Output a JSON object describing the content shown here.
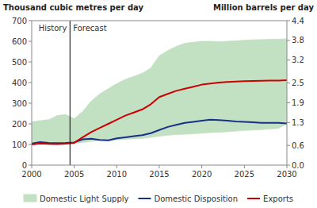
{
  "chart_data": {
    "type": "area",
    "y_label": "Thousand cubic metres per day",
    "y2_label": "Million barrels per day",
    "x": [
      2000,
      2001,
      2002,
      2003,
      2004,
      2005,
      2006,
      2007,
      2008,
      2009,
      2010,
      2011,
      2012,
      2013,
      2014,
      2015,
      2016,
      2017,
      2018,
      2019,
      2020,
      2021,
      2022,
      2023,
      2024,
      2025,
      2026,
      2027,
      2028,
      2029,
      2030
    ],
    "series": [
      {
        "name": "Domestic Light Supply",
        "type": "area",
        "color": "#c2e0c2",
        "values": [
          210,
          215,
          220,
          240,
          245,
          225,
          260,
          310,
          345,
          370,
          395,
          415,
          430,
          445,
          470,
          530,
          555,
          575,
          590,
          595,
          600,
          600,
          598,
          600,
          602,
          605,
          607,
          608,
          610,
          610,
          612
        ],
        "bottom": [
          100,
          105,
          100,
          100,
          105,
          105,
          110,
          115,
          120,
          118,
          122,
          125,
          128,
          130,
          135,
          140,
          145,
          148,
          150,
          152,
          155,
          158,
          160,
          162,
          165,
          168,
          170,
          172,
          175,
          178,
          200
        ]
      },
      {
        "name": "Domestic Disposition",
        "type": "line",
        "color": "#1a2f8a",
        "values": [
          105,
          112,
          108,
          107,
          108,
          110,
          125,
          128,
          122,
          120,
          130,
          135,
          140,
          145,
          155,
          170,
          185,
          195,
          205,
          210,
          215,
          220,
          218,
          215,
          212,
          210,
          208,
          205,
          205,
          205,
          202
        ]
      },
      {
        "name": "Exports",
        "type": "line",
        "color": "#cc0000",
        "values": [
          100,
          105,
          103,
          102,
          104,
          108,
          135,
          160,
          180,
          200,
          220,
          240,
          255,
          270,
          295,
          330,
          345,
          360,
          370,
          380,
          390,
          395,
          400,
          403,
          405,
          407,
          408,
          409,
          410,
          410,
          412
        ]
      }
    ],
    "xlim": [
      2000,
      2030
    ],
    "xticks": [
      2000,
      2005,
      2010,
      2015,
      2020,
      2025,
      2030
    ],
    "ylim": [
      0,
      700
    ],
    "yticks": [
      0,
      100,
      200,
      300,
      400,
      500,
      600,
      700
    ],
    "y2lim": [
      0.0,
      4.4
    ],
    "y2ticks": [
      {
        "value": 0.0,
        "label": "0.0"
      },
      0.6,
      1.3,
      1.9,
      2.5,
      3.2,
      3.8,
      4.4
    ],
    "annotations": [
      {
        "x": 2004.5,
        "labels": [
          "History",
          "Forecast"
        ]
      }
    ],
    "grid": false,
    "legend": "bottom"
  }
}
